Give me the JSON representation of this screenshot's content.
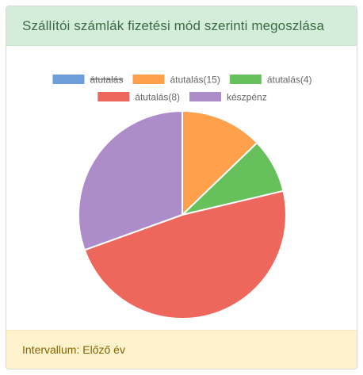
{
  "card": {
    "title": "Szállítói számlák fizetési mód szerinti megoszlása",
    "footer": "Intervallum: Előző év"
  },
  "chart_data": {
    "type": "pie",
    "title": "Szállítói számlák fizetési mód szerinti megoszlása",
    "legend_placement": "top",
    "series": [
      {
        "name": "átutalás",
        "value": 0,
        "color": "#6f9fd8",
        "hidden": true
      },
      {
        "name": "átutalás(15)",
        "value": 12.8,
        "color": "#ffa04d",
        "hidden": false
      },
      {
        "name": "átutalás(4)",
        "value": 8.5,
        "color": "#66c05b",
        "hidden": false
      },
      {
        "name": "átutalás(8)",
        "value": 48.2,
        "color": "#ee675c",
        "hidden": false
      },
      {
        "name": "készpénz",
        "value": 30.5,
        "color": "#ac8cc9",
        "hidden": false
      }
    ]
  }
}
